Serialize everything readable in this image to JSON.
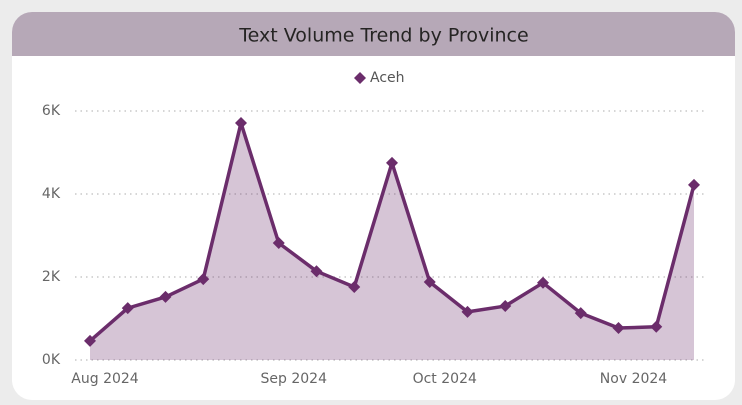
{
  "chart_data": {
    "type": "area",
    "title": "Text Volume Trend by Province",
    "categories": [
      "Aug 2024",
      null,
      null,
      null,
      null,
      "Sep 2024",
      null,
      null,
      null,
      "Oct 2024",
      null,
      null,
      null,
      null,
      "Nov 2024",
      null,
      null
    ],
    "series": [
      {
        "name": "Aceh",
        "color": "#6b2d6b",
        "values": [
          460,
          1250,
          1520,
          1950,
          5710,
          2820,
          2140,
          1760,
          4750,
          1880,
          1160,
          1300,
          1860,
          1130,
          770,
          800,
          4220
        ]
      }
    ],
    "ylim": [
      0,
      6000
    ],
    "yticks": [
      {
        "value": 0,
        "label": "0K"
      },
      {
        "value": 2000,
        "label": "2K"
      },
      {
        "value": 4000,
        "label": "4K"
      },
      {
        "value": 6000,
        "label": "6K"
      }
    ],
    "grid": true,
    "legend": "top"
  }
}
